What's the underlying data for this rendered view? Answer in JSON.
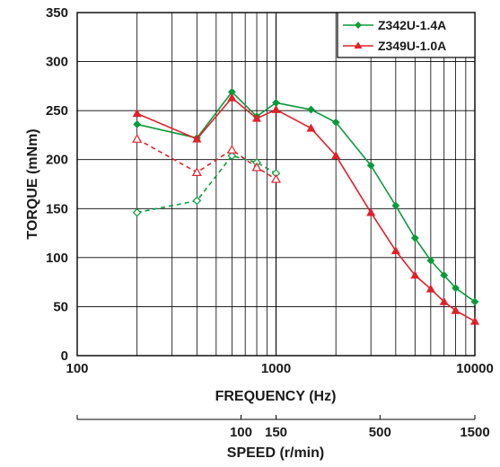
{
  "chart_data": {
    "type": "line",
    "xscale": "log",
    "xlim": [
      100,
      10000
    ],
    "ylim": [
      0,
      350
    ],
    "xlabel": "FREQUENCY (Hz)",
    "ylabel": "TORQUE (mNm)",
    "x_ticks": [
      {
        "value": 100,
        "label": "100"
      },
      {
        "value": 1000,
        "label": "1000"
      },
      {
        "value": 10000,
        "label": "10000"
      }
    ],
    "y_ticks": [
      {
        "value": 0,
        "label": "0"
      },
      {
        "value": 50,
        "label": "50"
      },
      {
        "value": 100,
        "label": "100"
      },
      {
        "value": 150,
        "label": "150"
      },
      {
        "value": 200,
        "label": "200"
      },
      {
        "value": 250,
        "label": "250"
      },
      {
        "value": 300,
        "label": "300"
      },
      {
        "value": 350,
        "label": "350"
      }
    ],
    "grid": true,
    "legend_position": "top-right",
    "secondary_axis": {
      "label": "SPEED (r/min)",
      "ticks": [
        {
          "value": 100,
          "label": "100"
        },
        {
          "value": 150,
          "label": "150"
        },
        {
          "value": 500,
          "label": "500"
        },
        {
          "value": 1500,
          "label": "1500"
        }
      ]
    },
    "series": [
      {
        "name": "Z342U-1.4A",
        "color": "#0a9a3a",
        "marker": "diamond",
        "style": "solid",
        "x": [
          200,
          400,
          600,
          800,
          1000,
          1500,
          2000,
          3000,
          4000,
          5000,
          6000,
          7000,
          8000,
          10000
        ],
        "y": [
          236,
          222,
          269,
          244,
          258,
          251,
          238,
          194,
          153,
          120,
          97,
          82,
          69,
          55
        ]
      },
      {
        "name": "Z349U-1.0A",
        "color": "#e0202a",
        "marker": "triangle",
        "style": "solid",
        "x": [
          200,
          400,
          600,
          800,
          1000,
          1500,
          2000,
          3000,
          4000,
          5000,
          6000,
          7000,
          8000,
          10000
        ],
        "y": [
          247,
          221,
          263,
          242,
          251,
          232,
          204,
          146,
          107,
          82,
          68,
          55,
          46,
          35
        ]
      },
      {
        "color": "#0a9a3a",
        "marker": "diamond-open",
        "style": "dashed",
        "x": [
          200,
          400,
          600,
          800,
          1000
        ],
        "y": [
          146,
          158,
          204,
          197,
          186
        ]
      },
      {
        "color": "#e0202a",
        "marker": "triangle-open",
        "style": "dashed",
        "x": [
          200,
          400,
          600,
          800,
          1000
        ],
        "y": [
          221,
          187,
          210,
          192,
          180
        ]
      }
    ]
  }
}
